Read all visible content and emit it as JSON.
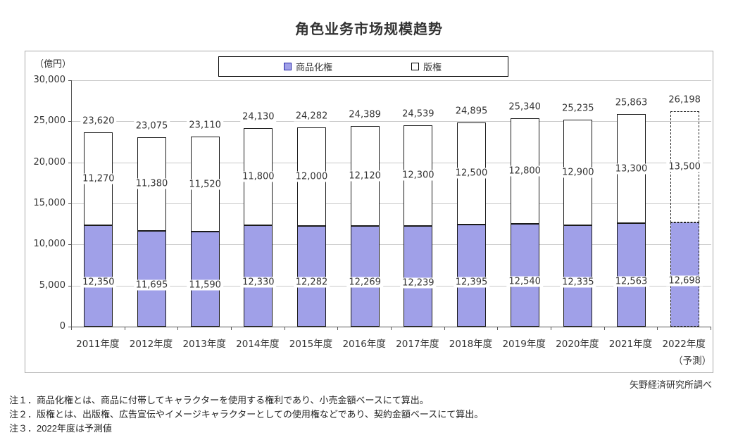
{
  "title": "角色业务市场规模趋势",
  "unit_label": "（億円）",
  "attribution": "矢野経済研究所調べ",
  "notes": [
    "注１．商品化権とは、商品に付帯してキャラクターを使用する権利であり、小売金額ベースにて算出。",
    "注２．版権とは、出版権、広告宣伝やイメージキャラクターとしての使用権などであり、契約金額ベースにて算出。",
    "注３．2022年度は予測値"
  ],
  "colors": {
    "merch_fill": "#a0a0e8",
    "merch_swatch_border": "#2525a8",
    "bar_border": "#1a1a1a",
    "gridline": "#c9c9c9",
    "axis": "#555555"
  },
  "chart_data": {
    "type": "bar",
    "stacked": true,
    "title": "角色业务市场规模趋势",
    "unit": "億円",
    "grid": true,
    "legend_position": "top",
    "ylim": [
      0,
      30000
    ],
    "ytick_step": 5000,
    "ytick_labels": [
      "0",
      "5,000",
      "10,000",
      "15,000",
      "20,000",
      "25,000",
      "30,000"
    ],
    "categories": [
      "2011年度",
      "2012年度",
      "2013年度",
      "2014年度",
      "2015年度",
      "2016年度",
      "2017年度",
      "2018年度",
      "2019年度",
      "2020年度",
      "2021年度",
      "2022年度"
    ],
    "forecast_index": 11,
    "forecast_label": "（予測）",
    "series": [
      {
        "name": "商品化権",
        "values": [
          12350,
          11695,
          11590,
          12330,
          12282,
          12269,
          12239,
          12395,
          12540,
          12335,
          12563,
          12698
        ]
      },
      {
        "name": "版権",
        "values": [
          11270,
          11380,
          11520,
          11800,
          12000,
          12120,
          12300,
          12500,
          12800,
          12900,
          13300,
          13500
        ]
      }
    ],
    "totals": [
      23620,
      23075,
      23110,
      24130,
      24282,
      24389,
      24539,
      24895,
      25340,
      25235,
      25863,
      26198
    ]
  }
}
